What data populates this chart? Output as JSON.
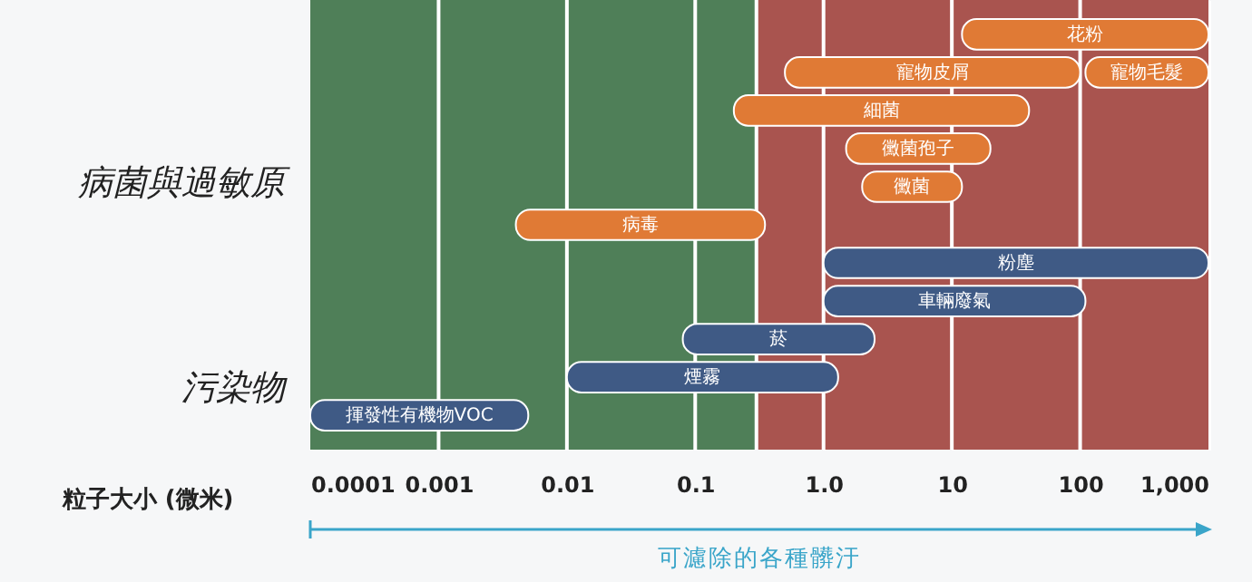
{
  "chart_data": {
    "type": "bar",
    "orientation": "horizontal",
    "xlabel": "粒子大小 (微米)",
    "categories": [
      null,
      null,
      null,
      null,
      null,
      null,
      null,
      null,
      null,
      null,
      null
    ],
    "series": [
      {
        "color": "#e07a35",
        "base": [
          12,
          0.5,
          0.2,
          1.5,
          2,
          0.004,
          null,
          null,
          null,
          null,
          null
        ],
        "values": [
          988,
          99.5,
          39.8,
          18.5,
          10,
          0.346,
          null,
          null,
          null,
          null,
          null
        ],
        "value_labels": [
          "花粉",
          "寵物皮屑",
          "細菌",
          "黴菌孢子",
          "黴菌",
          "病毒",
          null,
          null,
          null,
          null,
          null
        ]
      },
      {
        "color": "#e07a35",
        "base": [
          null,
          110,
          null,
          null,
          null,
          null,
          null,
          null,
          null,
          null,
          null
        ],
        "values": [
          null,
          890,
          null,
          null,
          null,
          null,
          null,
          null,
          null,
          null,
          null
        ],
        "value_labels": [
          null,
          "寵物毛髮",
          null,
          null,
          null,
          null,
          null,
          null,
          null,
          null,
          null
        ]
      },
      {
        "color": "#3f5a85",
        "base": [
          null,
          null,
          null,
          null,
          null,
          null,
          1,
          1,
          0.08,
          0.01,
          0.0001
        ],
        "values": [
          null,
          null,
          null,
          null,
          null,
          null,
          999,
          109,
          2.42,
          1.29,
          0.0049
        ],
        "value_labels": [
          null,
          null,
          null,
          null,
          null,
          null,
          "粉塵",
          "車輛廢氣",
          "菸",
          "煙霧",
          "揮發性有機物VOC"
        ]
      }
    ],
    "log": "x",
    "xlim": [
      0.0001,
      1000
    ],
    "xticks": [
      0.0001,
      0.001,
      0.01,
      0.1,
      {
        "value": 1,
        "label": "1.0"
      },
      10,
      100,
      {
        "value": 1000,
        "label": "1,000"
      }
    ],
    "grid": "x",
    "bands": [
      {
        "axis": "x",
        "from": 0.0001,
        "to": 0.3,
        "color": "#4f7f58"
      },
      {
        "axis": "x",
        "from": 0.3,
        "to": 1000,
        "color": "#a9544f"
      }
    ],
    "ref_lines": [
      {
        "axis": "x",
        "value": 0.3,
        "color": "#ffffff"
      }
    ],
    "annotations": [
      "病菌與過敏原",
      "污染物",
      "可濾除的各種髒汙"
    ]
  }
}
